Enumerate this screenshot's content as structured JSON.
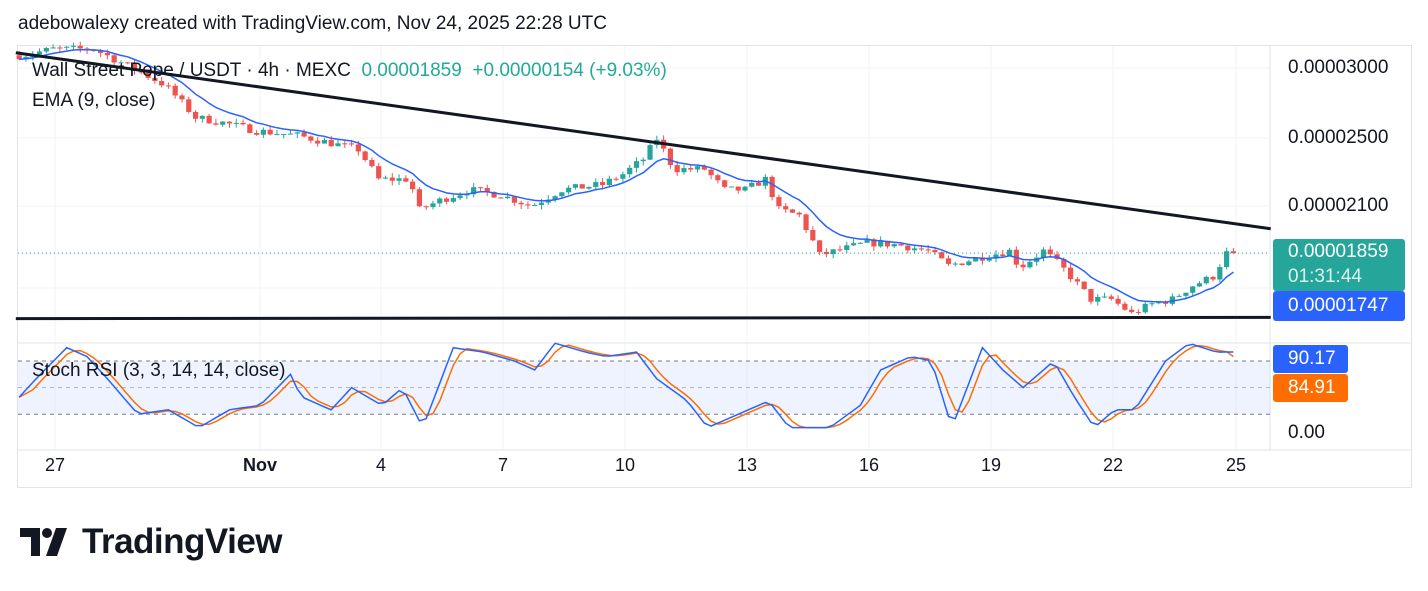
{
  "header": "adebowalexy created with TradingView.com, Nov 24, 2025 22:28 UTC",
  "legend": {
    "symbol": "Wall Street Pepe / USDT · 4h · MEXC",
    "last": "0.00001859",
    "change": "+0.00000154 (+9.03%)",
    "ema": "EMA (9, close)",
    "stoch": "Stoch RSI (3, 3, 14, 14, close)"
  },
  "price_axis": [
    "0.00003000",
    "0.00002500",
    "0.00002100"
  ],
  "tags": {
    "price": "0.00001859",
    "countdown": "01:31:44",
    "ema": "0.00001747",
    "k": "90.17",
    "d": "84.91",
    "zero": "0.00"
  },
  "time_axis": [
    "27",
    "Nov",
    "4",
    "7",
    "10",
    "13",
    "16",
    "19",
    "22",
    "25"
  ],
  "logo": "TradingView",
  "colors": {
    "up": "#26a69a",
    "down": "#ef5350",
    "ema": "#2962ff",
    "k": "#2962ff",
    "d": "#ff6d00",
    "last_tag": "#26a69a",
    "trendline": "#131722"
  },
  "chart_data": [
    {
      "type": "candlestick",
      "interval": "4h",
      "scale": "log",
      "ylim": [
        1.5e-05,
        3.25e-05
      ],
      "price_points": [
        [
          "2025-10-26T06:00",
          3.1e-05
        ],
        [
          "2025-10-27T00:00",
          3.15e-05
        ],
        [
          "2025-10-28T00:00",
          3.15e-05
        ],
        [
          "2025-10-28T18:00",
          3.03e-05
        ],
        [
          "2025-10-29T18:00",
          2.87e-05
        ],
        [
          "2025-10-30T12:00",
          2.64e-05
        ],
        [
          "2025-10-31T06:00",
          2.6e-05
        ],
        [
          "2025-11-01T00:00",
          2.55e-05
        ],
        [
          "2025-11-02T00:00",
          2.52e-05
        ],
        [
          "2025-11-03T00:00",
          2.46e-05
        ],
        [
          "2025-11-03T12:00",
          2.43e-05
        ],
        [
          "2025-11-04T00:00",
          2.25e-05
        ],
        [
          "2025-11-04T18:00",
          2.25e-05
        ],
        [
          "2025-11-05T00:00",
          2.08e-05
        ],
        [
          "2025-11-05T12:00",
          2.13e-05
        ],
        [
          "2025-11-06T06:00",
          2.19e-05
        ],
        [
          "2025-11-07T00:00",
          2.16e-05
        ],
        [
          "2025-11-07T18:00",
          2.1e-05
        ],
        [
          "2025-11-08T12:00",
          2.19e-05
        ],
        [
          "2025-11-09T12:00",
          2.22e-05
        ],
        [
          "2025-11-10T00:00",
          2.28e-05
        ],
        [
          "2025-11-10T12:00",
          2.37e-05
        ],
        [
          "2025-11-10T20:00",
          2.5e-05
        ],
        [
          "2025-11-11T06:00",
          2.31e-05
        ],
        [
          "2025-11-12T00:00",
          2.31e-05
        ],
        [
          "2025-11-12T12:00",
          2.19e-05
        ],
        [
          "2025-11-13T00:00",
          2.19e-05
        ],
        [
          "2025-11-13T12:00",
          2.25e-05
        ],
        [
          "2025-11-13T20:00",
          2.08e-05
        ],
        [
          "2025-11-14T08:00",
          2.05e-05
        ],
        [
          "2025-11-14T20:00",
          1.85e-05
        ],
        [
          "2025-11-15T06:00",
          1.87e-05
        ],
        [
          "2025-11-16T00:00",
          1.91e-05
        ],
        [
          "2025-11-16T18:00",
          1.9e-05
        ],
        [
          "2025-11-17T12:00",
          1.87e-05
        ],
        [
          "2025-11-18T00:00",
          1.8e-05
        ],
        [
          "2025-11-19T00:00",
          1.85e-05
        ],
        [
          "2025-11-19T12:00",
          1.87e-05
        ],
        [
          "2025-11-19T18:00",
          1.79e-05
        ],
        [
          "2025-11-20T08:00",
          1.87e-05
        ],
        [
          "2025-11-20T18:00",
          1.8e-05
        ],
        [
          "2025-11-21T12:00",
          1.65e-05
        ],
        [
          "2025-11-21T20:00",
          1.65e-05
        ],
        [
          "2025-11-22T00:00",
          1.65e-05
        ],
        [
          "2025-11-22T12:00",
          1.59e-05
        ],
        [
          "2025-11-23T00:00",
          1.63e-05
        ],
        [
          "2025-11-23T12:00",
          1.65e-05
        ],
        [
          "2025-11-24T00:00",
          1.71e-05
        ],
        [
          "2025-11-24T12:00",
          1.75e-05
        ],
        [
          "2025-11-24T20:00",
          1.859e-05
        ]
      ],
      "last_close": 1.859e-05,
      "ema": {
        "period": 9,
        "last": 1.747e-05
      },
      "trendlines": [
        {
          "from": [
            "2025-10-26T00:00",
            3.12e-05
          ],
          "to": [
            "2025-11-25T20:00",
            1.98e-05
          ]
        },
        {
          "from": [
            "2025-10-26T00:00",
            1.57e-05
          ],
          "to": [
            "2025-11-25T20:00",
            1.575e-05
          ]
        }
      ]
    },
    {
      "type": "line",
      "name": "Stoch RSI (3, 3, 14, 14, close)",
      "ylim": [
        0,
        100
      ],
      "bands": [
        20,
        50,
        80
      ],
      "k_points": [
        [
          "2025-10-26T00:00",
          35
        ],
        [
          "2025-10-26T12:00",
          60
        ],
        [
          "2025-10-27T06:00",
          95
        ],
        [
          "2025-10-27T18:00",
          85
        ],
        [
          "2025-10-28T06:00",
          60
        ],
        [
          "2025-10-29T00:00",
          20
        ],
        [
          "2025-10-29T18:00",
          25
        ],
        [
          "2025-10-30T12:00",
          5
        ],
        [
          "2025-10-31T06:00",
          25
        ],
        [
          "2025-11-01T00:00",
          30
        ],
        [
          "2025-11-01T18:00",
          65
        ],
        [
          "2025-11-02T00:00",
          40
        ],
        [
          "2025-11-02T18:00",
          25
        ],
        [
          "2025-11-03T06:00",
          50
        ],
        [
          "2025-11-04T00:00",
          30
        ],
        [
          "2025-11-04T12:00",
          50
        ],
        [
          "2025-11-05T00:00",
          5
        ],
        [
          "2025-11-05T18:00",
          95
        ],
        [
          "2025-11-06T12:00",
          90
        ],
        [
          "2025-11-07T06:00",
          80
        ],
        [
          "2025-11-07T18:00",
          70
        ],
        [
          "2025-11-08T06:00",
          100
        ],
        [
          "2025-11-09T00:00",
          90
        ],
        [
          "2025-11-09T12:00",
          85
        ],
        [
          "2025-11-10T06:00",
          90
        ],
        [
          "2025-11-10T18:00",
          60
        ],
        [
          "2025-11-11T12:00",
          35
        ],
        [
          "2025-11-12T00:00",
          5
        ],
        [
          "2025-11-12T18:00",
          20
        ],
        [
          "2025-11-13T12:00",
          35
        ],
        [
          "2025-11-14T00:00",
          5
        ],
        [
          "2025-11-15T00:00",
          5
        ],
        [
          "2025-11-15T18:00",
          30
        ],
        [
          "2025-11-16T06:00",
          70
        ],
        [
          "2025-11-17T00:00",
          85
        ],
        [
          "2025-11-17T12:00",
          80
        ],
        [
          "2025-11-18T00:00",
          5
        ],
        [
          "2025-11-18T18:00",
          95
        ],
        [
          "2025-11-19T06:00",
          70
        ],
        [
          "2025-11-19T18:00",
          50
        ],
        [
          "2025-11-20T12:00",
          80
        ],
        [
          "2025-11-21T00:00",
          40
        ],
        [
          "2025-11-21T12:00",
          5
        ],
        [
          "2025-11-22T00:00",
          25
        ],
        [
          "2025-11-22T12:00",
          25
        ],
        [
          "2025-11-23T06:00",
          80
        ],
        [
          "2025-11-23T20:00",
          100
        ],
        [
          "2025-11-24T12:00",
          90
        ],
        [
          "2025-11-24T20:00",
          90.17
        ]
      ],
      "k_last": 90.17,
      "d_last": 84.91
    }
  ]
}
